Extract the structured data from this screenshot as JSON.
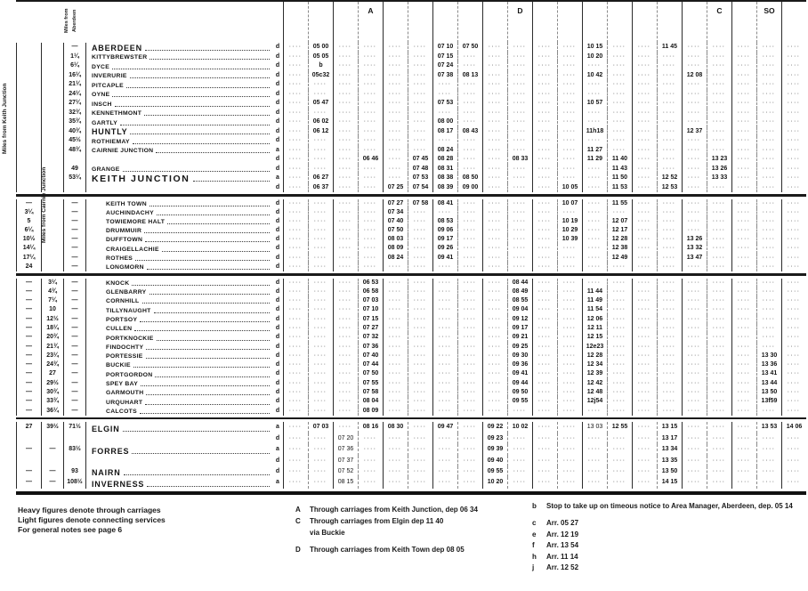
{
  "side_labels": {
    "keith": "Miles from Keith Junction",
    "cairnie": "Miles from Cairnie Junction",
    "aberdeen_1": "Miles from",
    "aberdeen_2": "Aberdeen"
  },
  "col_letters": {
    "4": "A",
    "10": "D",
    "18": "C",
    "20": "SO"
  },
  "timetable": {
    "groups": [
      {
        "cls": "g1",
        "indent": false,
        "rows": [
          {
            "m1": "",
            "m2": "",
            "m3": "—",
            "name": "ABERDEEN",
            "size": "s-lg",
            "ad": "d",
            "cells": {
              "2": "05 00",
              "7": "07 10",
              "8": "07 50",
              "13": "10 15",
              "16": "11 45"
            }
          },
          {
            "m1": "",
            "m2": "",
            "m3": "1¼",
            "name": "KITTYBREWSTER",
            "ad": "d",
            "cells": {
              "2": "05 05",
              "7": "07 15",
              "13": "10 20"
            }
          },
          {
            "m1": "",
            "m2": "",
            "m3": "6¼",
            "name": "DYCE",
            "ad": "d",
            "cells": {
              "2": "b",
              "7": "07 24"
            }
          },
          {
            "m1": "",
            "m2": "",
            "m3": "16¼",
            "name": "INVERURIE",
            "ad": "d",
            "cells": {
              "2": "05c32",
              "7": "07 38",
              "8": "08 13",
              "13": "10 42",
              "17": "12 08"
            }
          },
          {
            "m1": "",
            "m2": "",
            "m3": "21¼",
            "name": "PITCAPLE",
            "ad": "d",
            "cells": {}
          },
          {
            "m1": "",
            "m2": "",
            "m3": "24¼",
            "name": "OYNE",
            "ad": "d",
            "cells": {}
          },
          {
            "m1": "",
            "m2": "",
            "m3": "27¼",
            "name": "INSCH",
            "ad": "d",
            "cells": {
              "2": "05 47",
              "7": "07 53",
              "13": "10 57"
            }
          },
          {
            "m1": "",
            "m2": "",
            "m3": "32¾",
            "name": "KENNETHMONT",
            "ad": "d",
            "cells": {}
          },
          {
            "m1": "",
            "m2": "",
            "m3": "35¾",
            "name": "GARTLY",
            "ad": "d",
            "cells": {
              "2": "06 02",
              "7": "08 00"
            }
          },
          {
            "m1": "",
            "m2": "",
            "m3": "40¾",
            "name": "HUNTLY",
            "size": "s-lg",
            "ad": "d",
            "cells": {
              "2": "06 12",
              "7": "08 17",
              "8": "08 43",
              "13": "11h18",
              "17": "12 37"
            }
          },
          {
            "m1": "",
            "m2": "",
            "m3": "45½",
            "name": "ROTHIEMAY",
            "ad": "d",
            "cells": {}
          },
          {
            "m1": "",
            "m2": "",
            "m3": "48¾",
            "name": "CAIRNIE JUNCTION",
            "ad": "a",
            "cells": {
              "7": "08 24",
              "13": "11 27"
            }
          },
          {
            "m1": "",
            "m2": "",
            "m3": "",
            "name": "",
            "ad": "d",
            "cells": {
              "4": "06 46",
              "6": "07 45",
              "7": "08 28",
              "10": "08 33",
              "13": "11 29",
              "14": "11 40",
              "18": "13 23"
            }
          },
          {
            "m1": "",
            "m2": "",
            "m3": "49",
            "name": "GRANGE",
            "ad": "d",
            "cells": {
              "6": "07 48",
              "7": "08 31",
              "14": "11 43",
              "18": "13 26"
            }
          },
          {
            "m1": "",
            "m2": "",
            "m3": "53¼",
            "name": "KEITH JUNCTION",
            "size": "s-xl",
            "ad": "a",
            "cells": {
              "2": "06 27",
              "6": "07 53",
              "7": "08 38",
              "8": "08 50",
              "14": "11 50",
              "16": "12 52",
              "18": "13 33"
            }
          },
          {
            "m1": "",
            "m2": "",
            "m3": "",
            "name": "",
            "ad": "d",
            "cells": {
              "2": "06 37",
              "5": "07 25",
              "6": "07 54",
              "7": "08 39",
              "8": "09 00",
              "12": "10 05",
              "14": "11 53",
              "16": "12 53"
            }
          }
        ]
      },
      {
        "cls": "g2",
        "indent": true,
        "rows": [
          {
            "m1": "—",
            "m2": "",
            "m3": "—",
            "name": "KEITH TOWN",
            "ad": "d",
            "cells": {
              "5": "07 27",
              "6": "07 58",
              "7": "08 41",
              "12": "10 07",
              "14": "11 55"
            }
          },
          {
            "m1": "3¼",
            "m2": "",
            "m3": "—",
            "name": "AUCHINDACHY",
            "ad": "d",
            "cells": {
              "5": "07 34"
            }
          },
          {
            "m1": "5",
            "m2": "",
            "m3": "—",
            "name": "TOWIEMORE HALT",
            "ad": "d",
            "cells": {
              "5": "07 40",
              "7": "08 53",
              "12": "10 19",
              "14": "12 07"
            }
          },
          {
            "m1": "6¼",
            "m2": "",
            "m3": "—",
            "name": "DRUMMUIR",
            "ad": "d",
            "cells": {
              "5": "07 50",
              "7": "09 06",
              "12": "10 29",
              "14": "12 17"
            }
          },
          {
            "m1": "10½",
            "m2": "",
            "m3": "—",
            "name": "DUFFTOWN",
            "ad": "d",
            "cells": {
              "5": "08 03",
              "7": "09 17",
              "12": "10 39",
              "14": "12 28",
              "17": "13 26"
            }
          },
          {
            "m1": "14¼",
            "m2": "",
            "m3": "—",
            "name": "CRAIGELLACHIE",
            "ad": "d",
            "cells": {
              "5": "08 09",
              "7": "09 26",
              "14": "12 38",
              "17": "13 32"
            }
          },
          {
            "m1": "17¼",
            "m2": "",
            "m3": "—",
            "name": "ROTHES",
            "ad": "d",
            "cells": {
              "5": "08 24",
              "7": "09 41",
              "14": "12 49",
              "17": "13 47"
            }
          },
          {
            "m1": "24",
            "m2": "",
            "m3": "—",
            "name": "LONGMORN",
            "ad": "d",
            "cells": {}
          }
        ]
      },
      {
        "cls": "g3",
        "indent": true,
        "rows": [
          {
            "m1": "—",
            "m2": "3¼",
            "m3": "—",
            "name": "KNOCK",
            "ad": "d",
            "cells": {
              "4": "06 53",
              "10": "08 44"
            }
          },
          {
            "m1": "—",
            "m2": "4¾",
            "m3": "—",
            "name": "GLENBARRY",
            "ad": "d",
            "cells": {
              "4": "06 58",
              "10": "08 49",
              "13": "11 44"
            }
          },
          {
            "m1": "—",
            "m2": "7¼",
            "m3": "—",
            "name": "CORNHILL",
            "ad": "d",
            "cells": {
              "4": "07 03",
              "10": "08 55",
              "13": "11 49"
            }
          },
          {
            "m1": "—",
            "m2": "10",
            "m3": "—",
            "name": "TILLYNAUGHT",
            "ad": "d",
            "cells": {
              "4": "07 10",
              "10": "09 04",
              "13": "11 54"
            }
          },
          {
            "m1": "—",
            "m2": "12½",
            "m3": "—",
            "name": "PORTSOY",
            "ad": "d",
            "cells": {
              "4": "07 15",
              "10": "09 12",
              "13": "12 06"
            }
          },
          {
            "m1": "—",
            "m2": "18¼",
            "m3": "—",
            "name": "CULLEN",
            "ad": "d",
            "cells": {
              "4": "07 27",
              "10": "09 17",
              "13": "12 11"
            }
          },
          {
            "m1": "—",
            "m2": "20¾",
            "m3": "—",
            "name": "PORTKNOCKIE",
            "ad": "d",
            "cells": {
              "4": "07 32",
              "10": "09 21",
              "13": "12 15"
            }
          },
          {
            "m1": "—",
            "m2": "21¾",
            "m3": "—",
            "name": "FINDOCHTY",
            "ad": "d",
            "cells": {
              "4": "07 36",
              "10": "09 25",
              "13": "12e23"
            }
          },
          {
            "m1": "—",
            "m2": "23¼",
            "m3": "—",
            "name": "PORTESSIE",
            "ad": "d",
            "cells": {
              "4": "07 40",
              "10": "09 30",
              "13": "12 28",
              "20": "13 30"
            }
          },
          {
            "m1": "—",
            "m2": "24¾",
            "m3": "—",
            "name": "BUCKIE",
            "ad": "d",
            "cells": {
              "4": "07 44",
              "10": "09 36",
              "13": "12 34",
              "20": "13 36"
            }
          },
          {
            "m1": "—",
            "m2": "27",
            "m3": "—",
            "name": "PORTGORDON",
            "ad": "d",
            "cells": {
              "4": "07 50",
              "10": "09 41",
              "13": "12 39",
              "20": "13 41"
            }
          },
          {
            "m1": "—",
            "m2": "29½",
            "m3": "—",
            "name": "SPEY BAY",
            "ad": "d",
            "cells": {
              "4": "07 55",
              "10": "09 44",
              "13": "12 42",
              "20": "13 44"
            }
          },
          {
            "m1": "—",
            "m2": "30¾",
            "m3": "—",
            "name": "GARMOUTH",
            "ad": "d",
            "cells": {
              "4": "07 58",
              "10": "09 50",
              "13": "12 48",
              "20": "13 50"
            }
          },
          {
            "m1": "—",
            "m2": "33¾",
            "m3": "—",
            "name": "URQUHART",
            "ad": "d",
            "cells": {
              "4": "08 04",
              "10": "09 55",
              "13": "12j54",
              "20": "13f59"
            }
          },
          {
            "m1": "—",
            "m2": "36¼",
            "m3": "—",
            "name": "CALCOTS",
            "ad": "d",
            "cells": {
              "4": "08 09"
            }
          }
        ]
      },
      {
        "cls": "g4",
        "indent": false,
        "rows": [
          {
            "m1": "27",
            "m2": "39½",
            "m3": "71½",
            "name": "ELGIN",
            "size": "s-lg",
            "ad": "a",
            "cells": {
              "2": "07 03",
              "4": "08 16",
              "5": "08 30",
              "7": "09 47",
              "9": "09 22",
              "10": "10 02",
              "13": "~13 03",
              "14": "12 55",
              "16": "13 15",
              "20": "13 53",
              "21": "14 06"
            }
          },
          {
            "m1": "",
            "m2": "",
            "m3": "",
            "name": "",
            "ad": "d",
            "cells": {
              "3": "~07 20",
              "9": "09 23",
              "16": "13 17"
            }
          },
          {
            "m1": "—",
            "m2": "—",
            "m3": "83½",
            "name": "FORRES",
            "size": "s-lg",
            "ad": "a",
            "cells": {
              "3": "~07 36",
              "9": "09 39",
              "16": "13 34"
            }
          },
          {
            "m1": "",
            "m2": "",
            "m3": "",
            "name": "",
            "ad": "d",
            "cells": {
              "3": "~07 37",
              "9": "09 40",
              "16": "13 35"
            }
          },
          {
            "m1": "—",
            "m2": "—",
            "m3": "93",
            "name": "NAIRN",
            "size": "s-lg",
            "ad": "d",
            "cells": {
              "3": "~07 52",
              "9": "09 55",
              "16": "13 50"
            }
          },
          {
            "m1": "—",
            "m2": "—",
            "m3": "108½",
            "name": "INVERNESS",
            "size": "s-lg",
            "ad": "a",
            "cells": {
              "3": "~08 15",
              "9": "10 20",
              "16": "14 15"
            }
          }
        ]
      }
    ]
  },
  "footer": {
    "legend": [
      "Heavy figures denote through carriages",
      "Light figures denote connecting services",
      "For general notes see page 6"
    ],
    "notes_mid": [
      {
        "letter": "A",
        "text": "Through carriages from Keith Junction, dep 06 34",
        "sub": ""
      },
      {
        "letter": "C",
        "text": "Through carriages from Elgin dep 11 40",
        "sub": "via Buckie"
      },
      {
        "letter": "D",
        "text": "Through carriages from Keith Town dep 08 05",
        "sub": "",
        "gap": true
      }
    ],
    "notes_right": [
      {
        "letter": "b",
        "text": "Stop to take up on timeous notice to Area Manager, Aberdeen, dep. 05 14"
      },
      {
        "letter": "c",
        "text": "Arr. 05 27"
      },
      {
        "letter": "e",
        "text": "Arr. 12 19"
      },
      {
        "letter": "f",
        "text": "Arr. 13 54"
      },
      {
        "letter": "h",
        "text": "Arr. 11 14"
      },
      {
        "letter": "j",
        "text": "Arr. 12 52"
      }
    ]
  }
}
